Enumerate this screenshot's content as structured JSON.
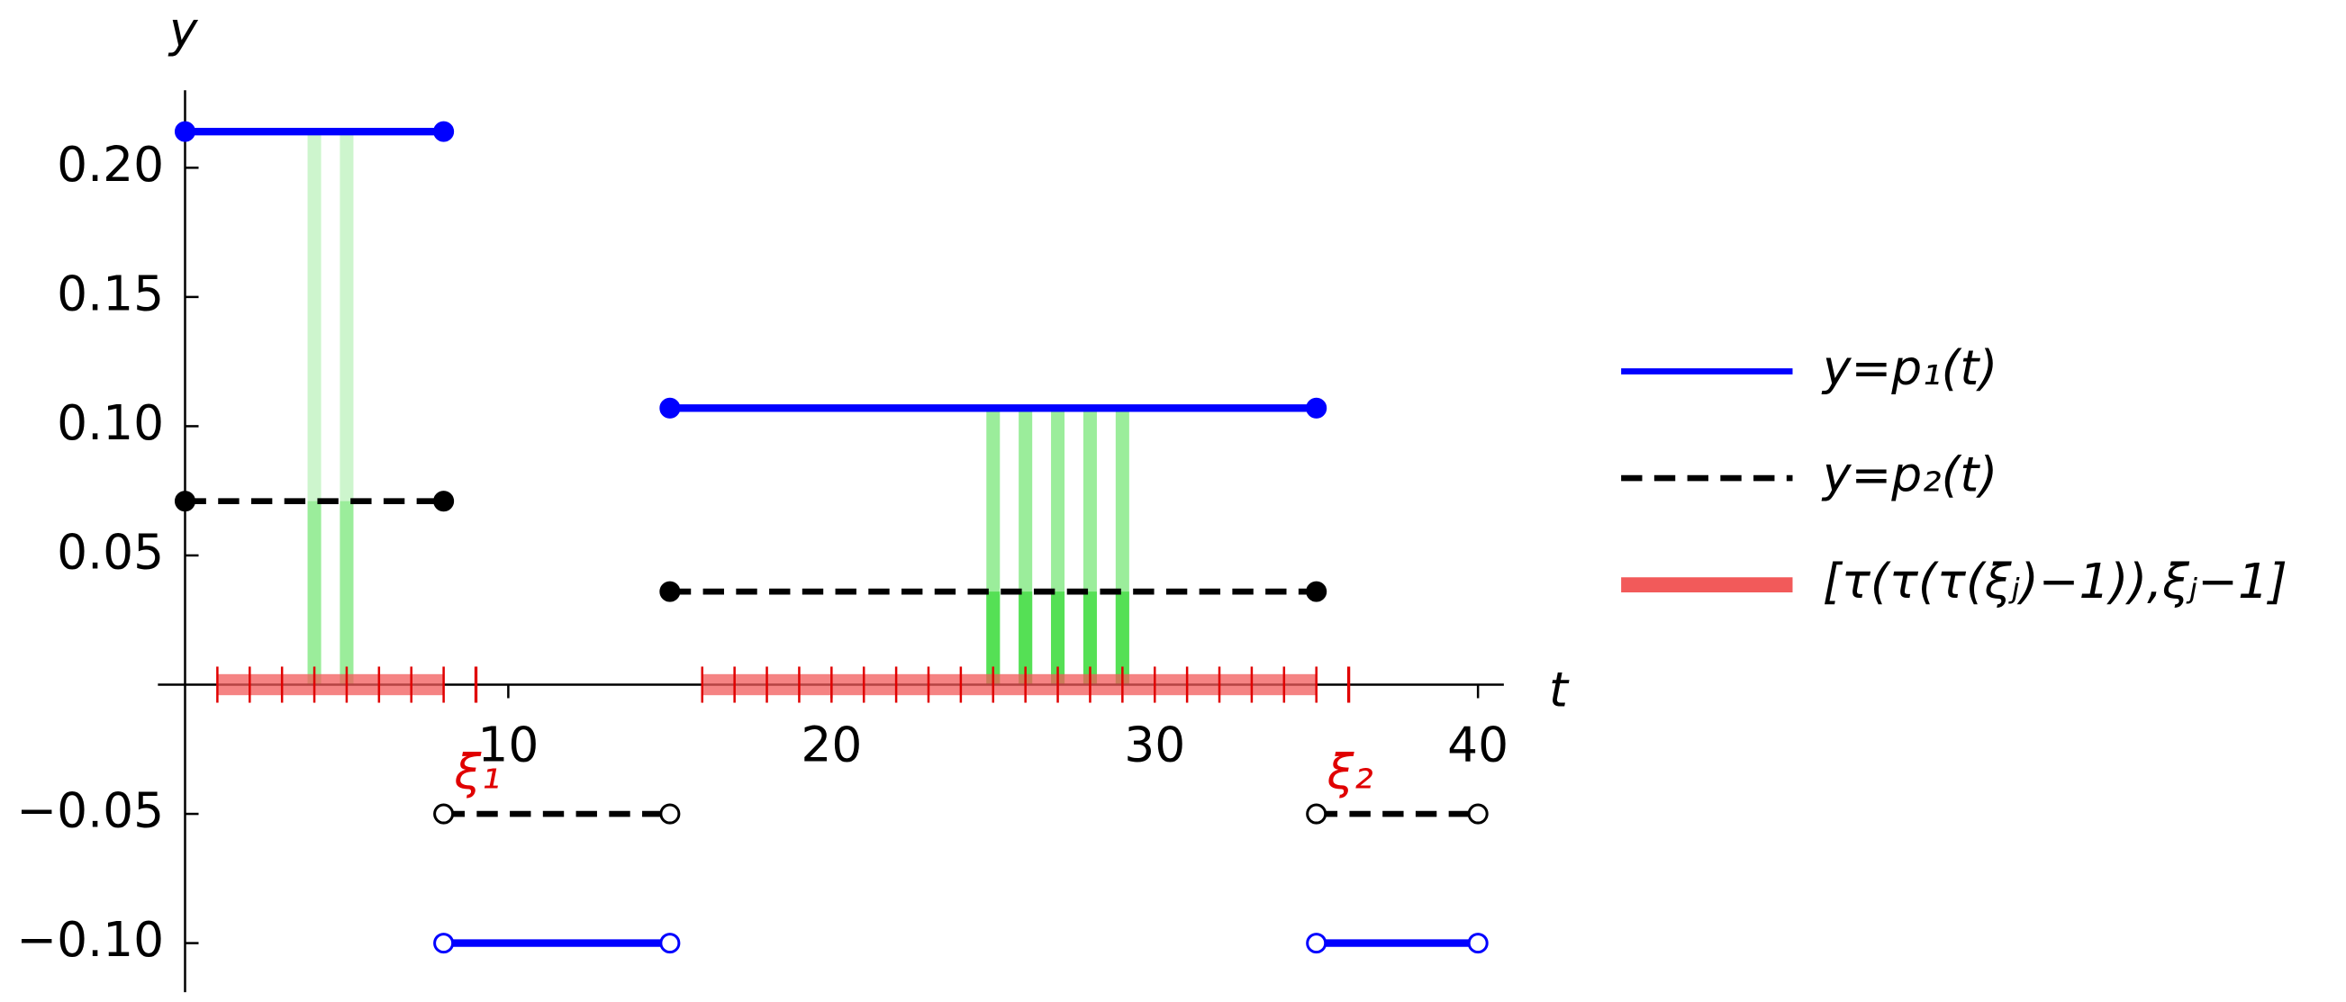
{
  "chart_data": {
    "type": "step",
    "x_label": "t",
    "y_label": "y",
    "xlim": [
      -0.84,
      40.8
    ],
    "ylim": [
      -0.119,
      0.23
    ],
    "xticks": [
      10,
      20,
      30,
      40
    ],
    "yticks": [
      {
        "value": -0.1,
        "label": "−0.10"
      },
      {
        "value": -0.05,
        "label": "−0.05"
      },
      0.05,
      {
        "value": 0.1,
        "label": "0.10"
      },
      0.15,
      {
        "value": 0.2,
        "label": "0.20"
      }
    ],
    "series": [
      {
        "name": "y=p₁(t)",
        "color": "#0000ff",
        "dash": false,
        "segments": [
          {
            "x": [
              0,
              8
            ],
            "values": [
              0.214,
              0.214
            ],
            "filled": [
              true,
              true
            ]
          },
          {
            "x": [
              8,
              15
            ],
            "values": [
              -0.1,
              -0.1
            ],
            "filled": [
              false,
              false
            ]
          },
          {
            "x": [
              15,
              35
            ],
            "values": [
              0.107,
              0.107
            ],
            "filled": [
              true,
              true
            ]
          },
          {
            "x": [
              35,
              40
            ],
            "values": [
              -0.1,
              -0.1
            ],
            "filled": [
              false,
              false
            ]
          }
        ]
      },
      {
        "name": "y=p₂(t)",
        "color": "#000000",
        "dash": true,
        "segments": [
          {
            "x": [
              0,
              8
            ],
            "values": [
              0.071,
              0.071
            ],
            "filled": [
              true,
              true
            ]
          },
          {
            "x": [
              8,
              15
            ],
            "values": [
              -0.05,
              -0.05
            ],
            "filled": [
              false,
              false
            ]
          },
          {
            "x": [
              15,
              35
            ],
            "values": [
              0.036,
              0.036
            ],
            "filled": [
              true,
              true
            ]
          },
          {
            "x": [
              35,
              40
            ],
            "values": [
              -0.05,
              -0.05
            ],
            "filled": [
              false,
              false
            ]
          }
        ]
      }
    ],
    "bar_groups": [
      {
        "color_upper": "#cdf5cd",
        "color_lower": "#9bed9b",
        "x": [
          4,
          5
        ],
        "values": [
          0.214,
          0.214
        ],
        "lower_values": [
          0.071,
          0.071
        ]
      },
      {
        "color_upper": "#9bed9b",
        "color_lower": "#55e055",
        "x": [
          25,
          26,
          27,
          28,
          29
        ],
        "values": [
          0.107,
          0.107,
          0.107,
          0.107,
          0.107
        ],
        "lower_values": [
          0.036,
          0.036,
          0.036,
          0.036,
          0.036
        ]
      }
    ],
    "intervals": {
      "name": "[τ(τ(τ(ξⱼ)−1)),ξⱼ−1]",
      "color": "#f25a5a",
      "tick_color": "#e00000",
      "ranges": [
        [
          1,
          8
        ],
        [
          16,
          35
        ]
      ]
    },
    "annotations": [
      {
        "x": 9,
        "label": "ξ₁"
      },
      {
        "x": 36,
        "label": "ξ₂"
      }
    ]
  }
}
